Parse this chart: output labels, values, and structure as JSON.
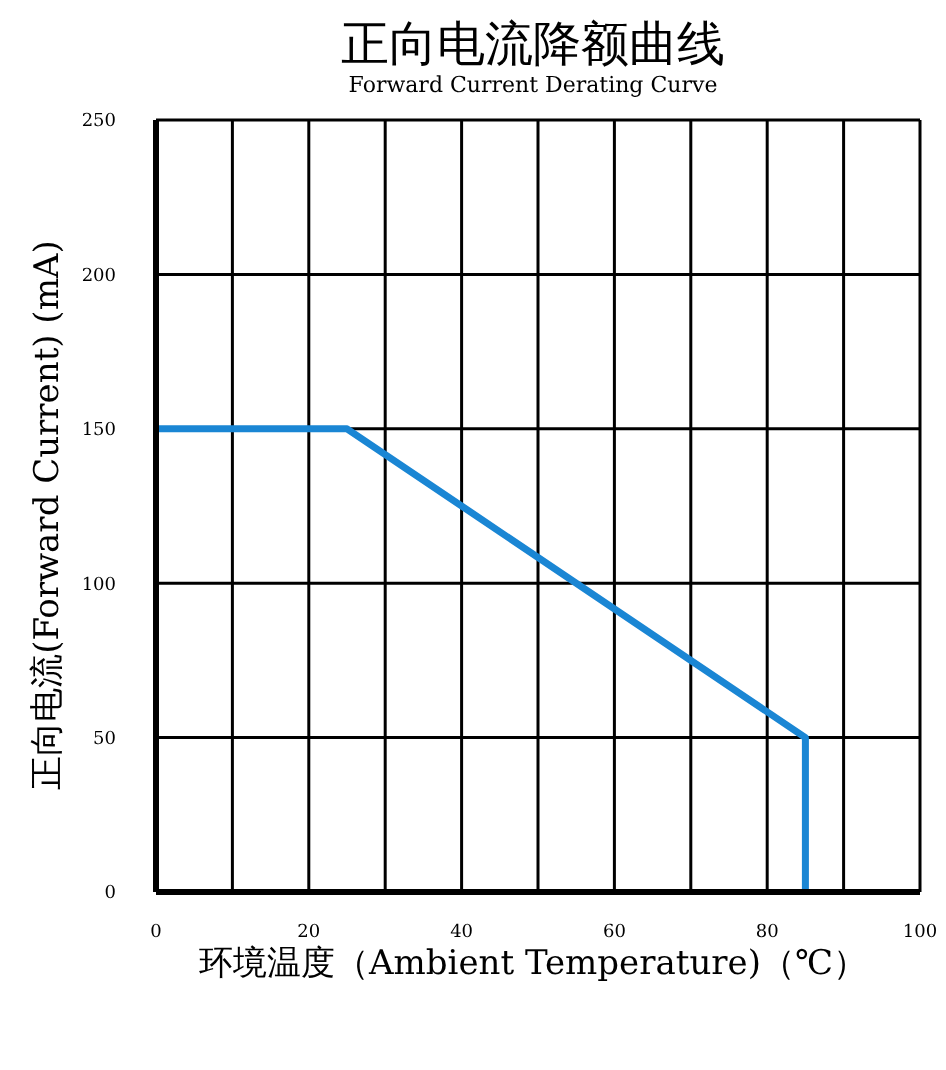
{
  "chart_data": {
    "type": "line",
    "title": "正向电流降额曲线",
    "subtitle": "Forward Current Derating Curve",
    "xlabel": "环境温度（Ambient Temperature)（℃）",
    "ylabel": "正向电流(Forward Current) (mA)",
    "x": [
      0,
      25,
      85,
      85
    ],
    "series": [
      {
        "color": "#1a86d4",
        "values": [
          150,
          150,
          50,
          0
        ]
      }
    ],
    "xlim": [
      0,
      100
    ],
    "xticks": [
      0,
      {
        "value": 10,
        "label": null
      },
      20,
      {
        "value": 30,
        "label": null
      },
      40,
      {
        "value": 50,
        "label": null
      },
      60,
      {
        "value": 70,
        "label": null
      },
      80,
      {
        "value": 90,
        "label": null
      },
      100
    ],
    "ylim": [
      0,
      250
    ],
    "yticks": [
      0,
      50,
      100,
      150,
      200,
      250
    ],
    "grid": true,
    "legend": false,
    "marker": "none",
    "line_style": "solid"
  }
}
